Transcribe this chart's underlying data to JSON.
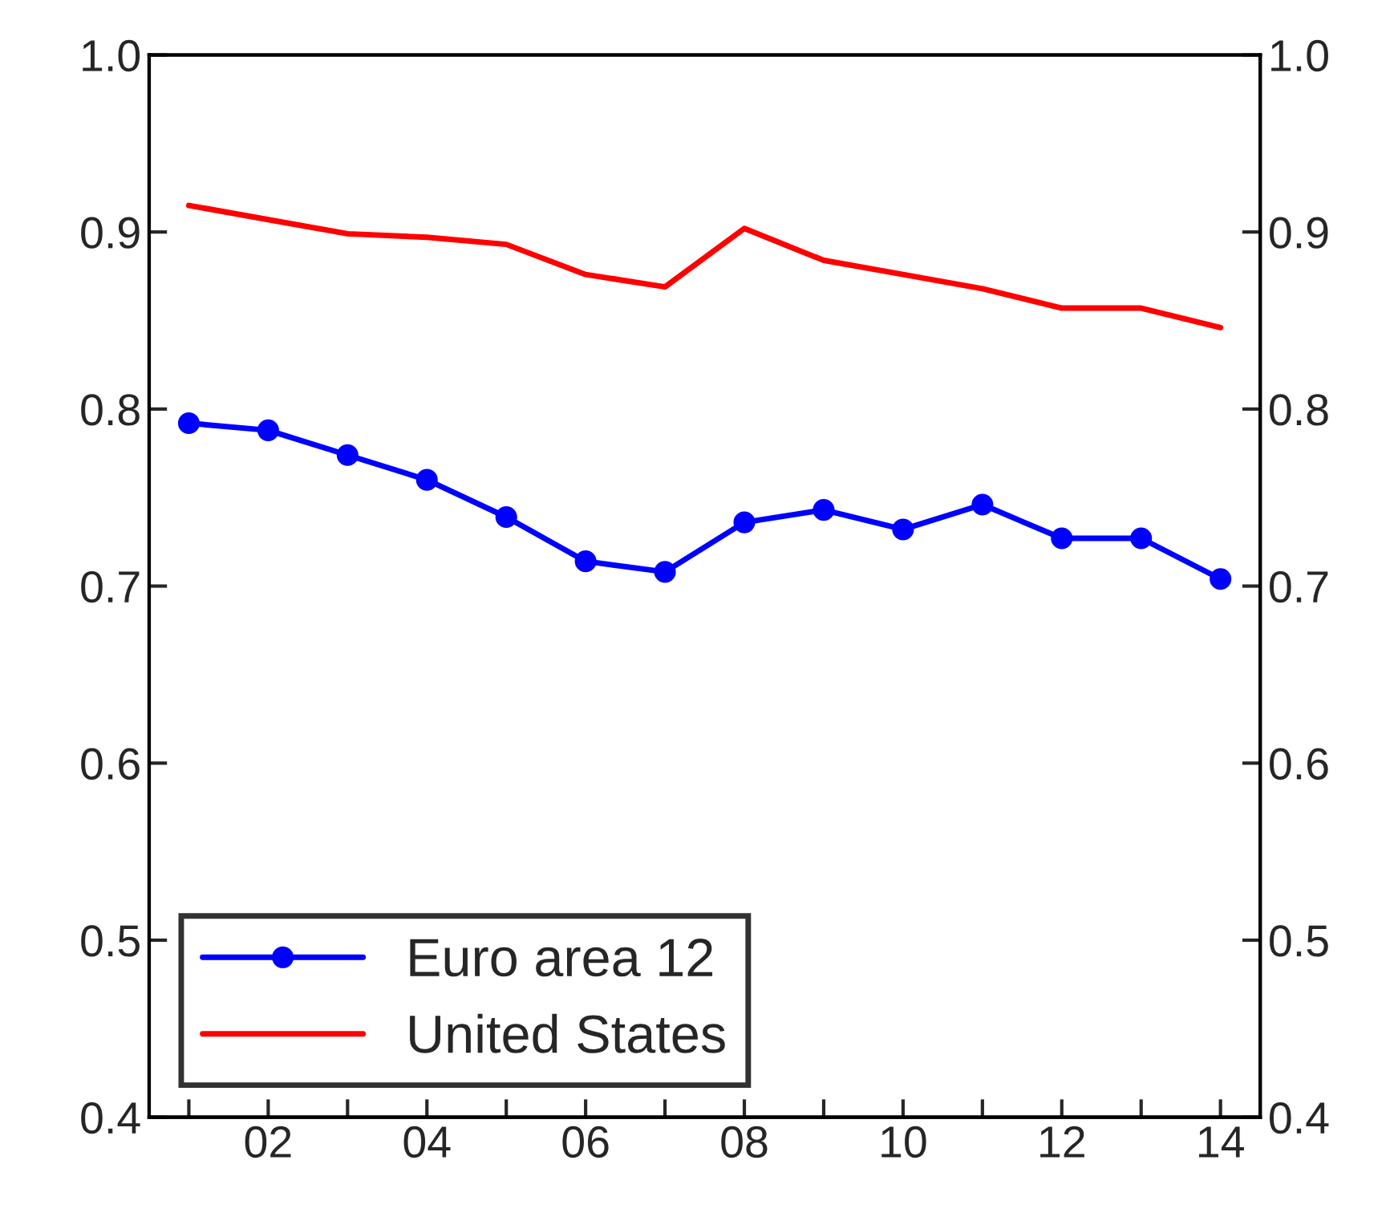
{
  "chart_data": {
    "type": "line",
    "x": [
      2001,
      2002,
      2003,
      2004,
      2005,
      2006,
      2007,
      2008,
      2009,
      2010,
      2011,
      2012,
      2013,
      2014
    ],
    "series": [
      {
        "name": "Euro area 12",
        "color": "#0000ff",
        "marker": "circle",
        "values": [
          0.792,
          0.788,
          0.774,
          0.76,
          0.739,
          0.714,
          0.708,
          0.736,
          0.743,
          0.732,
          0.746,
          0.727,
          0.727,
          0.704
        ]
      },
      {
        "name": "United States",
        "color": "#ff0000",
        "marker": "none",
        "values": [
          0.915,
          0.907,
          0.899,
          0.897,
          0.893,
          0.876,
          0.869,
          0.902,
          0.884,
          0.876,
          0.868,
          0.857,
          0.857,
          0.846
        ]
      }
    ],
    "xlim": [
      2000.5,
      2014.5
    ],
    "xticks": [
      {
        "value": 2001,
        "label": null
      },
      {
        "value": 2002,
        "label": "02"
      },
      {
        "value": 2003,
        "label": null
      },
      {
        "value": 2004,
        "label": "04"
      },
      {
        "value": 2005,
        "label": null
      },
      {
        "value": 2006,
        "label": "06"
      },
      {
        "value": 2007,
        "label": null
      },
      {
        "value": 2008,
        "label": "08"
      },
      {
        "value": 2009,
        "label": null
      },
      {
        "value": 2010,
        "label": "10"
      },
      {
        "value": 2011,
        "label": null
      },
      {
        "value": 2012,
        "label": "12"
      },
      {
        "value": 2013,
        "label": null
      },
      {
        "value": 2014,
        "label": "14"
      }
    ],
    "ylim": [
      0.4,
      1.0
    ],
    "yticks": [
      0.4,
      0.5,
      0.6,
      0.7,
      0.8,
      0.9,
      {
        "value": 1,
        "label": "1.0"
      }
    ],
    "y2lim": [
      0.4,
      1.0
    ],
    "y2ticks": [
      0.4,
      0.5,
      0.6,
      0.7,
      0.8,
      0.9,
      {
        "value": 1,
        "label": "1.0"
      }
    ],
    "grid": false,
    "legend": "bottom left"
  }
}
